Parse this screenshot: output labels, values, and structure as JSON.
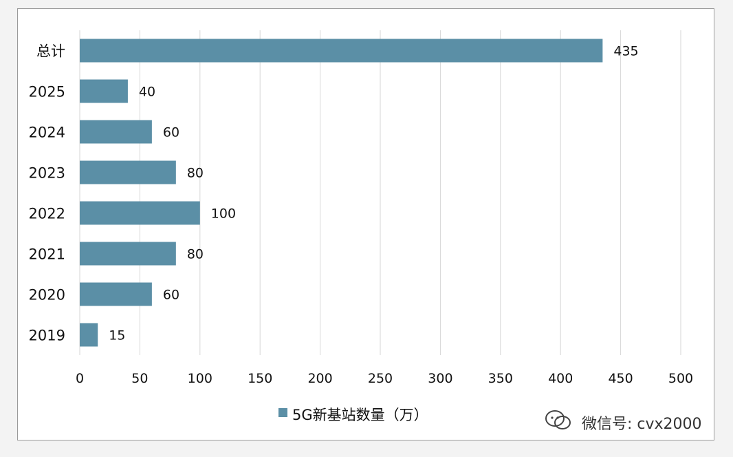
{
  "chart_data": {
    "type": "bar",
    "orientation": "horizontal",
    "categories": [
      "总计",
      "2025",
      "2024",
      "2023",
      "2022",
      "2021",
      "2020",
      "2019"
    ],
    "series": [
      {
        "name": "5G新基站数量（万）",
        "values": [
          435,
          40,
          60,
          80,
          100,
          80,
          60,
          15
        ],
        "color": "#5b8fa6"
      }
    ],
    "xlim": [
      0,
      500
    ],
    "xticks": [
      0,
      50,
      100,
      150,
      200,
      250,
      300,
      350,
      400,
      450,
      500
    ],
    "grid": true,
    "legend_position": "bottom",
    "data_labels": true,
    "watermark": "微信号: cvx2000"
  }
}
